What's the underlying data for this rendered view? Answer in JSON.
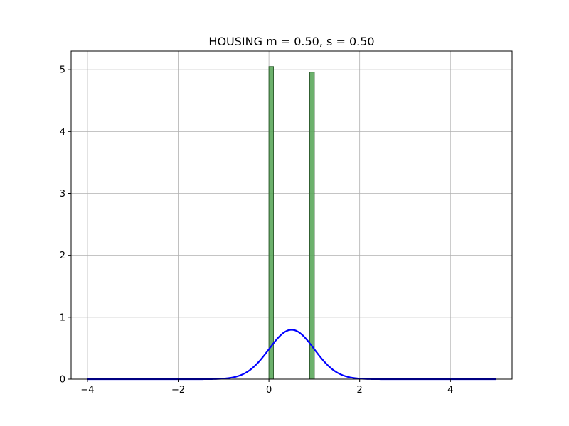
{
  "chart_data": {
    "type": "bar",
    "title": "HOUSING  m = 0.50,  s = 0.50",
    "xlabel": "",
    "ylabel": "",
    "xlim": [
      -4.36,
      5.36
    ],
    "ylim": [
      0,
      5.3
    ],
    "grid": true,
    "x_ticks": [
      {
        "value": -4,
        "label": "−4"
      },
      {
        "value": -2,
        "label": "−2"
      },
      {
        "value": 0,
        "label": "0"
      },
      {
        "value": 2,
        "label": "2"
      },
      {
        "value": 4,
        "label": "4"
      }
    ],
    "y_ticks": [
      {
        "value": 0,
        "label": "0"
      },
      {
        "value": 1,
        "label": "1"
      },
      {
        "value": 2,
        "label": "2"
      },
      {
        "value": 3,
        "label": "3"
      },
      {
        "value": 4,
        "label": "4"
      },
      {
        "value": 5,
        "label": "5"
      }
    ],
    "histogram": {
      "color": "#5ca85c",
      "edge_color": "#2f5f2f",
      "bins": [
        {
          "x0": 0.0,
          "x1": 0.1,
          "density": 5.05
        },
        {
          "x0": 0.9,
          "x1": 1.0,
          "density": 4.96
        }
      ]
    },
    "curve": {
      "color": "#0000ff",
      "x_min": -4.0,
      "x_max": 5.0,
      "mean": 0.5,
      "std": 0.5
    }
  }
}
